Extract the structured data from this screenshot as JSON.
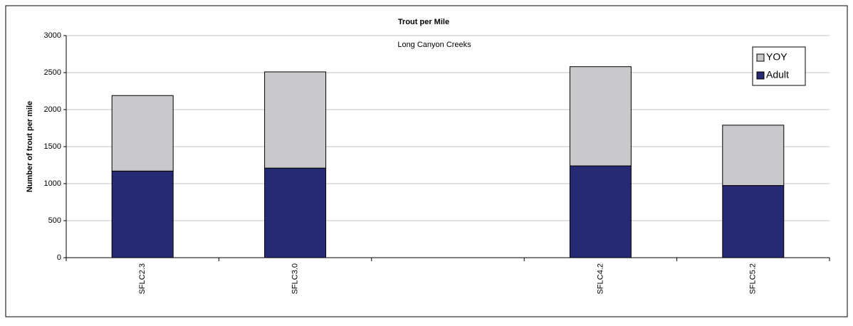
{
  "chart_data": {
    "type": "stacked_bar",
    "title": "Trout per Mile",
    "subtitle": "Long Canyon Creeks",
    "y_label": "Number of trout per mile",
    "categories": [
      "SFLC2.3",
      "SFLC3.0",
      null,
      "SFLC4.2",
      "SFLC5.2"
    ],
    "series": [
      {
        "name": "Adult",
        "color": "#262a73",
        "values": [
          1170,
          1210,
          null,
          1240,
          975
        ]
      },
      {
        "name": "YOY",
        "color": "#c9c9cb",
        "values": [
          1020,
          1300,
          null,
          1340,
          815
        ]
      }
    ],
    "ylim": [
      0,
      3000
    ],
    "yticks": [
      0,
      500,
      1000,
      1500,
      2000,
      2500,
      3000
    ],
    "grid": true,
    "legend": "top-right"
  }
}
